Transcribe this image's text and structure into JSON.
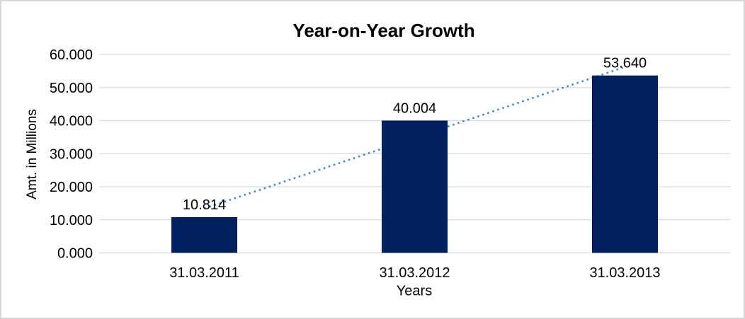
{
  "frame": {
    "background": "#ffffff",
    "border_color": "#d8d8d8"
  },
  "chart_data": {
    "type": "bar",
    "title": "Year-on-Year Growth",
    "categories": [
      "31.03.2011",
      "31.03.2012",
      "31.03.2013"
    ],
    "values": [
      10.814,
      40.004,
      53.64
    ],
    "data_labels": [
      "10.814",
      "40.004",
      "53.640"
    ],
    "xlabel": "Years",
    "ylabel": "Amt. in Millions",
    "ylim": [
      0,
      60
    ],
    "ytick_labels": [
      "0.000",
      "10.000",
      "20.000",
      "30.000",
      "40.000",
      "50.000",
      "60.000"
    ],
    "grid": true,
    "legend": "none",
    "bar_color": "#002060",
    "gridline_color": "#d9d9d9",
    "text_color": "#000000",
    "trendline": {
      "type": "linear",
      "style": "dotted",
      "color": "#4a86c8",
      "endpoint_values": [
        13.406,
        56.232
      ]
    }
  }
}
